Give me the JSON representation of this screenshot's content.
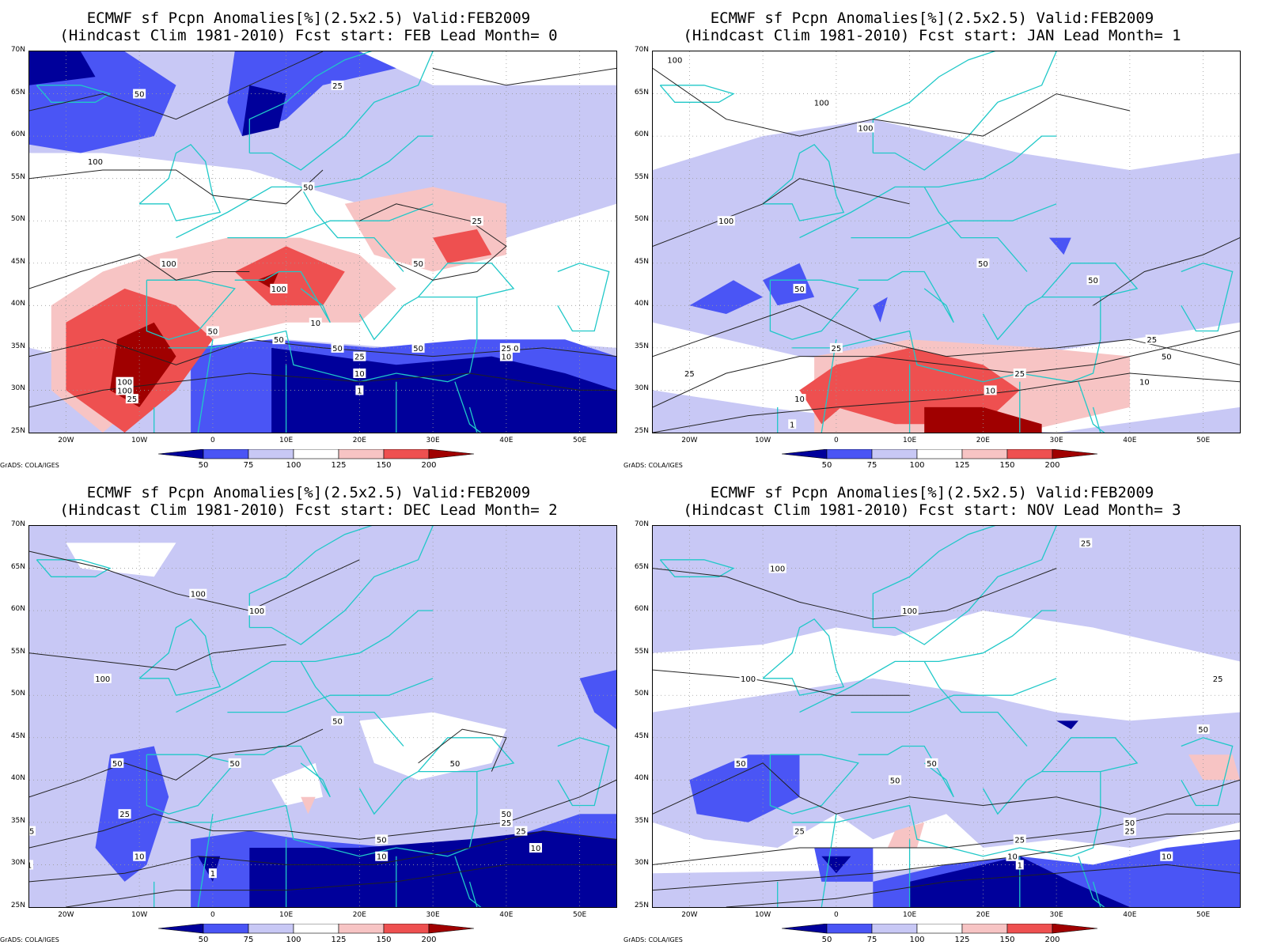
{
  "palette": {
    "below_50": "#00009b",
    "p50_75": "#4a55f5",
    "p75_100": "#c8c8f5",
    "p100_125": "#ffffff",
    "p125_150": "#f7c4c4",
    "p150_200": "#ee5050",
    "above_200": "#a00000",
    "coast": "#20c8c8",
    "contour": "#222222",
    "grid": "#9a9a9a"
  },
  "colorbar": {
    "labels": [
      "50",
      "75",
      "100",
      "125",
      "150",
      "200"
    ]
  },
  "axes": {
    "y_ticks": [
      "70N",
      "65N",
      "60N",
      "55N",
      "50N",
      "45N",
      "40N",
      "35N",
      "30N",
      "25N"
    ],
    "x_ticks": [
      "20W",
      "10W",
      "0",
      "10E",
      "20E",
      "30E",
      "40E",
      "50E"
    ]
  },
  "credit": "GrADS: COLA/IGES",
  "panels": [
    {
      "title1": "ECMWF sf Pcpn Anomalies[%](2.5x2.5) Valid:FEB2009",
      "title2": "(Hindcast Clim 1981-2010) Fcst start: FEB  Lead Month= 0",
      "contour_labels": [
        "50",
        "25",
        "100",
        "50",
        "100",
        "100",
        "50",
        "50",
        "100",
        "10",
        "50",
        "100",
        "50",
        "25",
        "25",
        "10",
        "1",
        "50",
        "25",
        "10",
        "50",
        "25"
      ]
    },
    {
      "title1": "ECMWF sf Pcpn Anomalies[%](2.5x2.5) Valid:FEB2009",
      "title2": "(Hindcast Clim 1981-2010) Fcst start: JAN  Lead Month= 1",
      "contour_labels": [
        "100",
        "100",
        "100",
        "100",
        "50",
        "50",
        "50",
        "25",
        "25",
        "25",
        "10",
        "10",
        "10",
        "50",
        "25",
        "1"
      ]
    },
    {
      "title1": "ECMWF sf Pcpn Anomalies[%](2.5x2.5) Valid:FEB2009",
      "title2": "(Hindcast Clim 1981-2010) Fcst start: DEC  Lead Month= 2",
      "contour_labels": [
        "100",
        "100",
        "100",
        "50",
        "50",
        "50",
        "50",
        "25",
        "25",
        "10",
        "1",
        "1",
        "50",
        "25",
        "10",
        "10",
        "50",
        "25"
      ]
    },
    {
      "title1": "ECMWF sf Pcpn Anomalies[%](2.5x2.5) Valid:FEB2009",
      "title2": "(Hindcast Clim 1981-2010) Fcst start: NOV  Lead Month= 3",
      "contour_labels": [
        "100",
        "100",
        "100",
        "25",
        "50",
        "50",
        "50",
        "25",
        "25",
        "10",
        "1",
        "50",
        "25",
        "50",
        "10",
        "25"
      ]
    }
  ]
}
